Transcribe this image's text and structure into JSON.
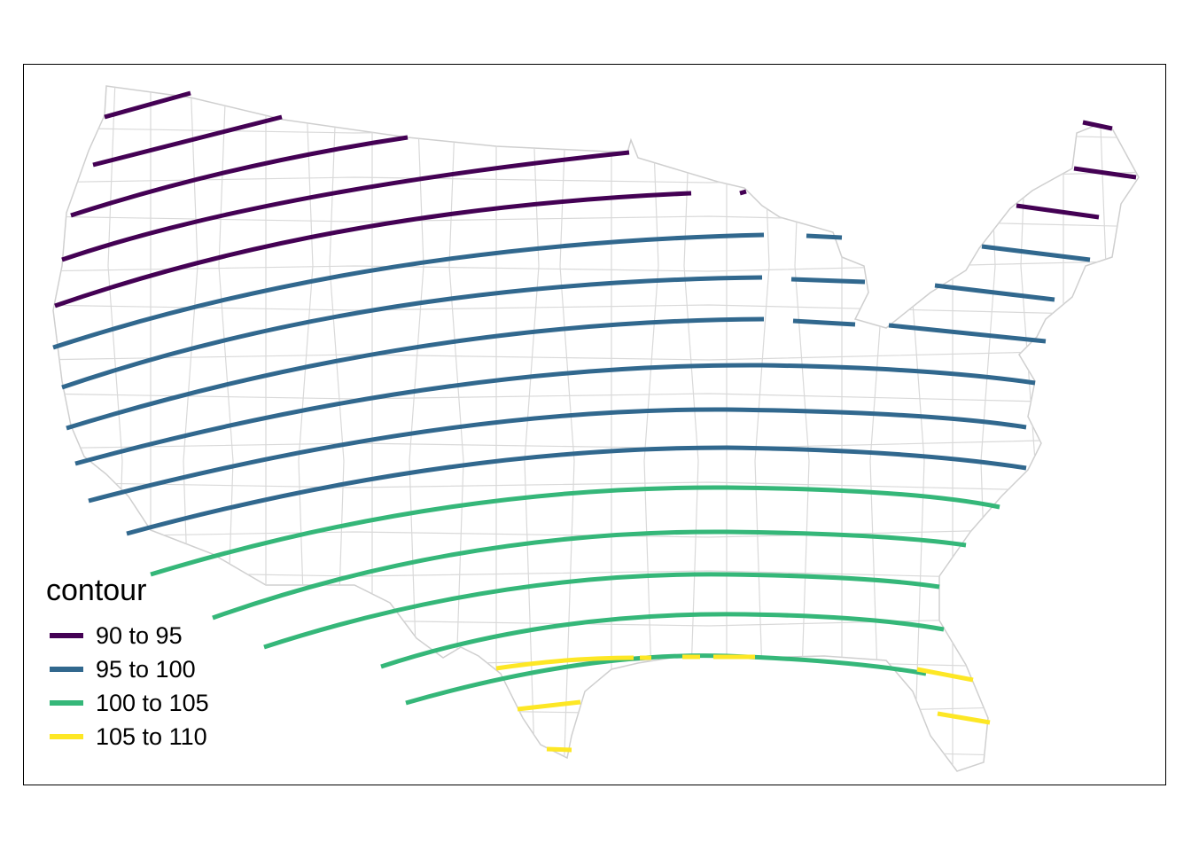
{
  "legend": {
    "title": "contour",
    "items": [
      {
        "label": "90 to 95",
        "color": "#440154"
      },
      {
        "label": "95 to 100",
        "color": "#31688e"
      },
      {
        "label": "100 to 105",
        "color": "#35b779"
      },
      {
        "label": "105 to 110",
        "color": "#fde725"
      }
    ]
  },
  "colors": {
    "state_boundary": "#cfcfcf",
    "frame": "#000000",
    "background": "#ffffff"
  }
}
